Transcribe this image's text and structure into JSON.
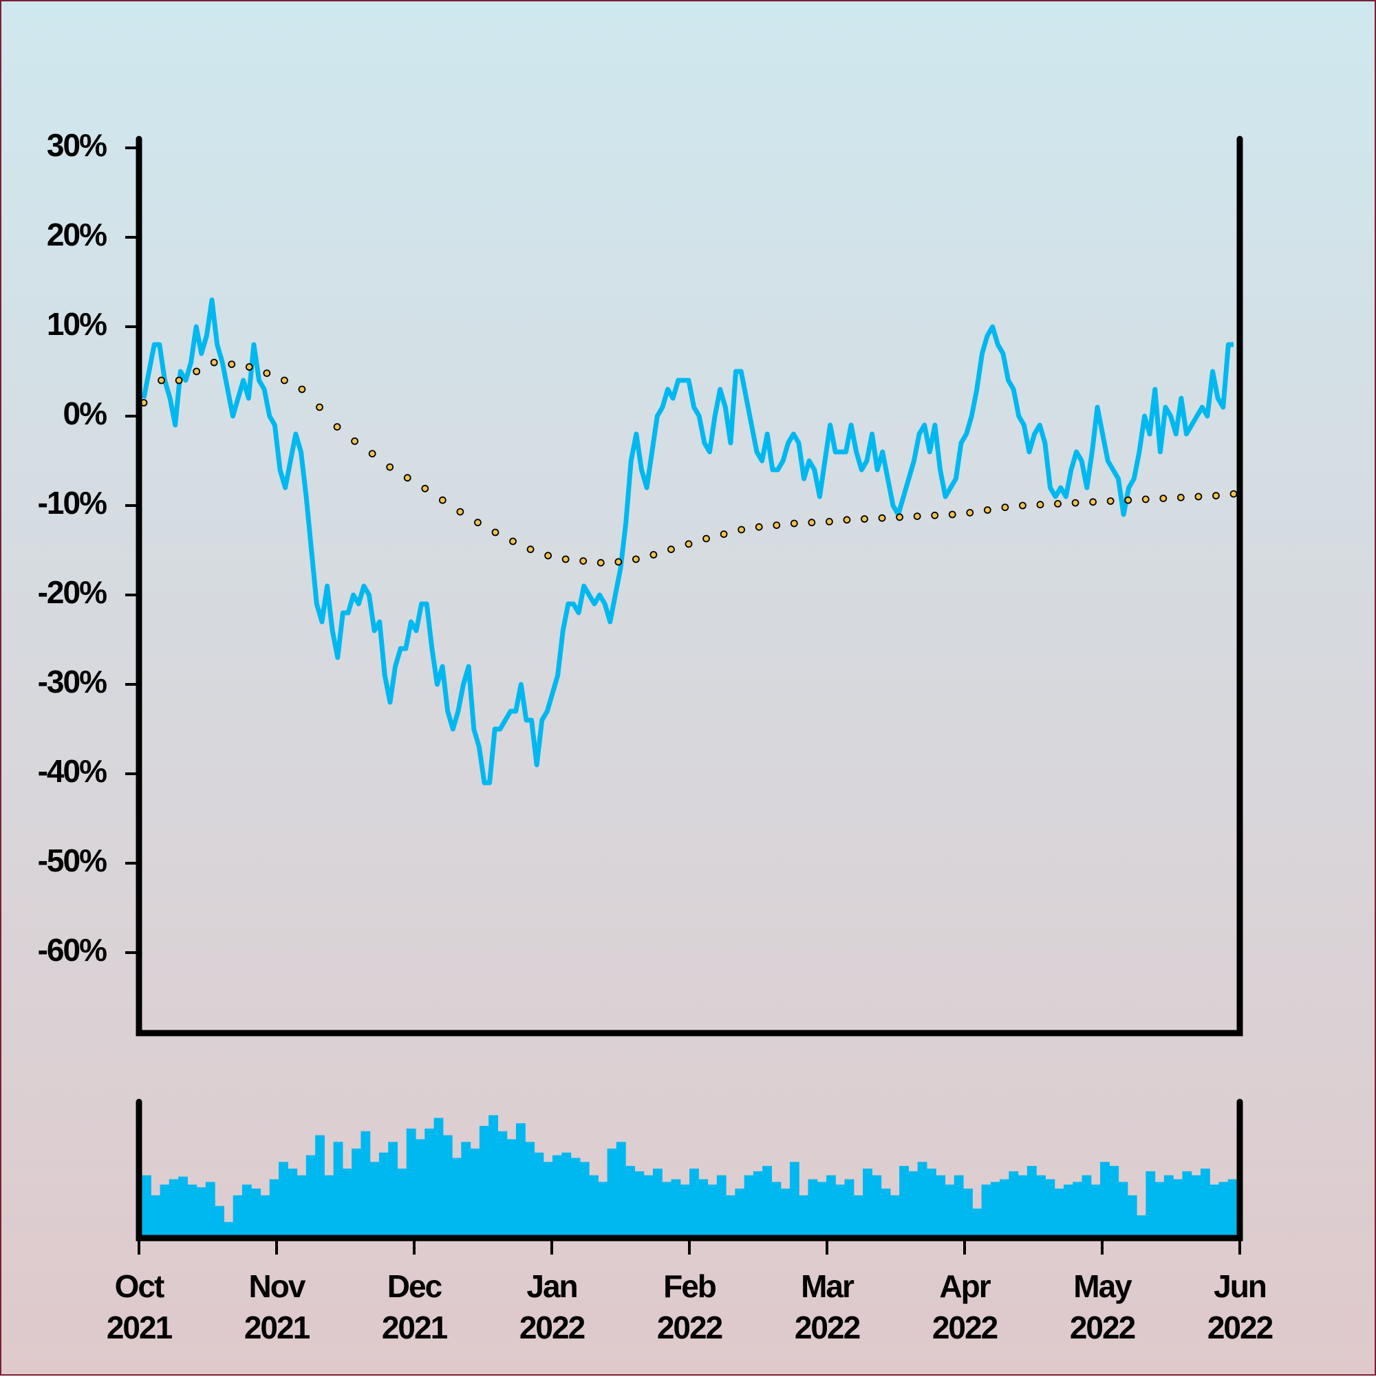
{
  "chart_data": [
    {
      "type": "line",
      "ylim": [
        -69,
        31
      ],
      "yticks": [
        {
          "value": 30,
          "label": "30%"
        },
        {
          "value": 20,
          "label": "20%"
        },
        {
          "value": 10,
          "label": "10%"
        },
        {
          "value": 0,
          "label": "0%"
        },
        {
          "value": -10,
          "label": "-10%"
        },
        {
          "value": -20,
          "label": "-20%"
        },
        {
          "value": -30,
          "label": "-30%"
        },
        {
          "value": -40,
          "label": "-40%"
        },
        {
          "value": -50,
          "label": "-50%"
        },
        {
          "value": -60,
          "label": "-60%"
        }
      ],
      "series": [
        {
          "color": "#00b8f0",
          "values": [
            2,
            5,
            8,
            8,
            4,
            2,
            -1,
            5,
            4,
            6,
            10,
            7,
            9,
            13,
            8,
            6,
            3,
            0,
            2,
            4,
            2,
            8,
            4,
            3,
            0,
            -1,
            -6,
            -8,
            -5,
            -2,
            -4,
            -9,
            -15,
            -21,
            -23,
            -19,
            -24,
            -27,
            -22,
            -22,
            -20,
            -21,
            -19,
            -20,
            -24,
            -23,
            -29,
            -32,
            -28,
            -26,
            -26,
            -23,
            -24,
            -21,
            -21,
            -26,
            -30,
            -28,
            -33,
            -35,
            -33,
            -30,
            -28,
            -35,
            -37,
            -41,
            -41,
            -35,
            -35,
            -34,
            -33,
            -33,
            -30,
            -34,
            -34,
            -39,
            -34,
            -33,
            -31,
            -29,
            -24,
            -21,
            -21,
            -22,
            -19,
            -20,
            -21,
            -20,
            -21,
            -23,
            -20,
            -17,
            -12,
            -5,
            -2,
            -6,
            -8,
            -4,
            0,
            1,
            3,
            2,
            4,
            4,
            4,
            1,
            0,
            -3,
            -4,
            0,
            3,
            1,
            -3,
            5,
            5,
            2,
            -1,
            -4,
            -5,
            -2,
            -6,
            -6,
            -5,
            -3,
            -2,
            -3,
            -7,
            -5,
            -6,
            -9,
            -5,
            -1,
            -4,
            -4,
            -4,
            -1,
            -4,
            -6,
            -5,
            -2,
            -6,
            -4,
            -7,
            -10,
            -11,
            -9,
            -7,
            -5,
            -2,
            -1,
            -4,
            -1,
            -6,
            -9,
            -8,
            -7,
            -3,
            -2,
            0,
            3,
            7,
            9,
            10,
            8,
            7,
            4,
            3,
            0,
            -1,
            -4,
            -2,
            -1,
            -3,
            -8,
            -9,
            -8,
            -9,
            -6,
            -4,
            -5,
            -8,
            -4,
            1,
            -2,
            -5,
            -6,
            -7,
            -11,
            -8,
            -7,
            -4,
            0,
            -2,
            3,
            -4,
            1,
            0,
            -2,
            2,
            -2,
            -1,
            0,
            1,
            0,
            5,
            2,
            1,
            8,
            8
          ]
        },
        {
          "color": "#f3c24e",
          "edgecolor": "#000000",
          "marker": "dot",
          "values": [
            1.5,
            4,
            4,
            5,
            6,
            5.8,
            5.5,
            4.8,
            4,
            3,
            1,
            -1.2,
            -2.8,
            -4.2,
            -5.7,
            -6.9,
            -8.1,
            -9.4,
            -10.7,
            -11.9,
            -13,
            -14,
            -14.9,
            -15.6,
            -16,
            -16.2,
            -16.4,
            -16.3,
            -16,
            -15.5,
            -14.9,
            -14.3,
            -13.7,
            -13.2,
            -12.7,
            -12.4,
            -12.2,
            -12,
            -11.9,
            -11.8,
            -11.6,
            -11.5,
            -11.4,
            -11.3,
            -11.2,
            -11.1,
            -11,
            -10.8,
            -10.5,
            -10.2,
            -10,
            -9.9,
            -9.8,
            -9.7,
            -9.6,
            -9.5,
            -9.4,
            -9.3,
            -9.2,
            -9.1,
            -9,
            -8.9,
            -8.7
          ]
        }
      ]
    },
    {
      "type": "bar",
      "ylim": [
        0,
        100
      ],
      "color": "#00b8f0",
      "values": [
        45,
        30,
        38,
        42,
        44,
        38,
        36,
        40,
        22,
        10,
        30,
        38,
        35,
        30,
        42,
        55,
        50,
        45,
        60,
        75,
        45,
        70,
        50,
        65,
        78,
        55,
        62,
        70,
        50,
        80,
        72,
        80,
        88,
        75,
        58,
        70,
        65,
        82,
        90,
        78,
        72,
        84,
        70,
        62,
        55,
        60,
        62,
        58,
        55,
        45,
        40,
        65,
        70,
        52,
        48,
        45,
        50,
        40,
        42,
        38,
        50,
        42,
        38,
        45,
        30,
        35,
        45,
        48,
        52,
        40,
        35,
        55,
        30,
        42,
        40,
        45,
        38,
        42,
        30,
        50,
        45,
        35,
        30,
        52,
        48,
        55,
        50,
        45,
        38,
        45,
        35,
        20,
        38,
        40,
        42,
        48,
        45,
        52,
        45,
        42,
        35,
        38,
        40,
        45,
        38,
        55,
        52,
        40,
        30,
        15,
        48,
        40,
        45,
        42,
        48,
        45,
        50,
        38,
        40,
        42
      ],
      "x_labels": [
        "Oct 2021",
        "Nov 2021",
        "Dec 2021",
        "Jan 2022",
        "Feb 2022",
        "Mar 2022",
        "Apr 2022",
        "May 2022",
        "Jun 2022"
      ]
    }
  ]
}
